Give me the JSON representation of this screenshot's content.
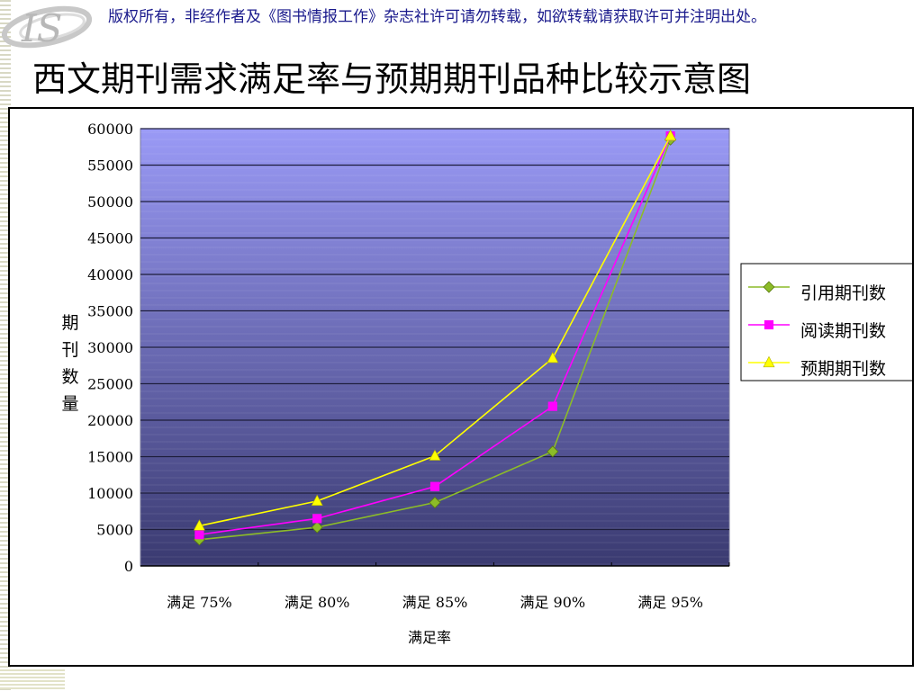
{
  "header": {
    "copyright_notice": "版权所有，非经作者及《图书情报工作》杂志社许可请勿转载，如欲转载请获取许可并注明出处。",
    "title": "西文期刊需求满足率与预期期刊品种比较示意图",
    "logo_text": "IS"
  },
  "colors": {
    "plot_top": "#9a9af6",
    "plot_bottom": "#3a3a70",
    "gridline": "#1e1e3c",
    "series": [
      "#8cbc28",
      "#ff00ff",
      "#ffff00"
    ]
  },
  "chart_data": {
    "type": "line",
    "categories": [
      "满足 75%",
      "满足 80%",
      "满足 85%",
      "满足 90%",
      "满足 95%"
    ],
    "series": [
      {
        "name": "引用期刊数",
        "marker": "diamond",
        "values": [
          3600,
          5300,
          8700,
          15700,
          58500
        ]
      },
      {
        "name": "阅读期刊数",
        "marker": "square",
        "values": [
          4300,
          6500,
          10900,
          21900,
          59000
        ]
      },
      {
        "name": "预期期刊数",
        "marker": "triangle",
        "values": [
          5500,
          8900,
          15100,
          28500,
          59000
        ]
      }
    ],
    "title": "",
    "xlabel": "满足率",
    "ylabel": "期刊数量",
    "ylim": [
      0,
      60000
    ],
    "yticks": [
      0,
      5000,
      10000,
      15000,
      20000,
      25000,
      30000,
      35000,
      40000,
      45000,
      50000,
      55000,
      60000
    ],
    "grid": true,
    "legend_position": "right"
  }
}
